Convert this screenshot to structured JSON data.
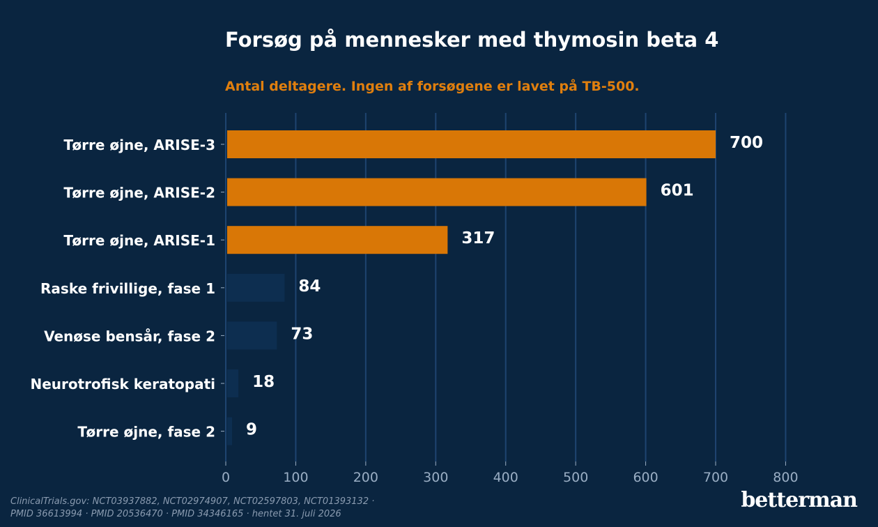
{
  "chart_data": {
    "type": "bar",
    "orientation": "horizontal",
    "title": "Forsøg på mennesker med thymosin beta 4",
    "subtitle": "Antal deltagere. Ingen af forsøgene er lavet på TB-500.",
    "categories": [
      "Tørre øjne, ARISE-3",
      "Tørre øjne, ARISE-2",
      "Tørre øjne, ARISE-1",
      "Raske frivillige, fase 1",
      "Venøse bensår, fase 2",
      "Neurotrofisk keratopati",
      "Tørre øjne, fase 2"
    ],
    "values": [
      700,
      601,
      317,
      84,
      73,
      18,
      9
    ],
    "highlight": [
      true,
      true,
      true,
      false,
      false,
      false,
      false
    ],
    "xlim": [
      0,
      800
    ],
    "xticks": [
      0,
      100,
      200,
      300,
      400,
      500,
      600,
      700,
      800
    ],
    "grid": "vertical",
    "xlabel": "",
    "ylabel": ""
  },
  "colors": {
    "background": "#0a2540",
    "highlight_bar": "#d97706",
    "muted_bar": "#0d2e50",
    "grid": "#1e4470"
  },
  "footer": {
    "line1": "ClinicalTrials.gov: NCT03937882, NCT02974907, NCT02597803, NCT01393132 ·",
    "line2": "PMID 36613994 · PMID 20536470 · PMID 34346165 · hentet 31. juli 2026"
  },
  "brand": "betterman"
}
